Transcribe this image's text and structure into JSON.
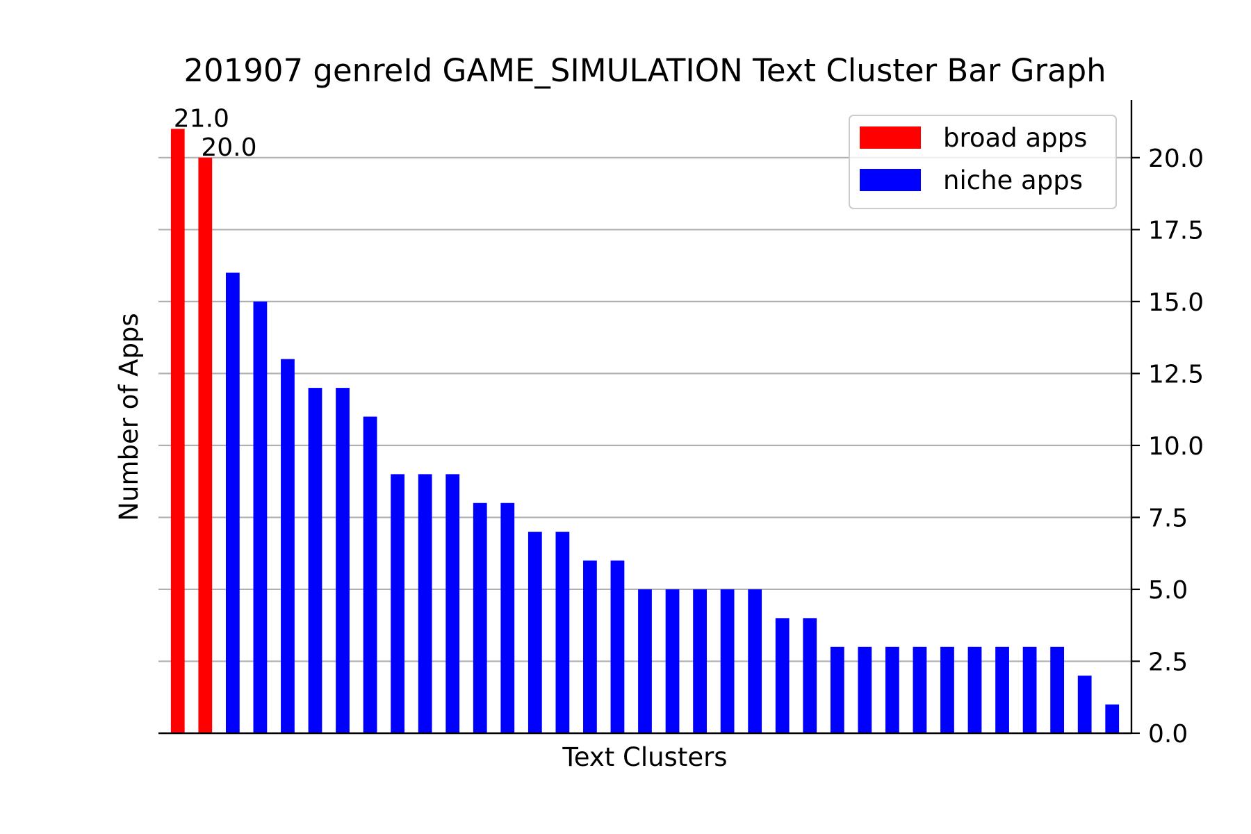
{
  "chart_data": {
    "type": "bar",
    "title": "201907 genreId GAME_SIMULATION Text Cluster Bar Graph",
    "xlabel": "Text Clusters",
    "ylabel": "Number of Apps",
    "ylim": [
      0,
      22
    ],
    "yticks": [
      0.0,
      2.5,
      5.0,
      7.5,
      10.0,
      12.5,
      15.0,
      17.5,
      20.0
    ],
    "ytick_labels": [
      "0.0",
      "2.5",
      "5.0",
      "7.5",
      "10.0",
      "12.5",
      "15.0",
      "17.5",
      "20.0"
    ],
    "y_axis_side": "right",
    "grid": "horizontal",
    "legend_position": "top-right",
    "series": [
      {
        "name": "broad apps",
        "color": "#ff0000",
        "values": [
          21,
          20
        ]
      },
      {
        "name": "niche apps",
        "color": "#0000ff",
        "values": [
          16,
          15,
          13,
          12,
          12,
          11,
          9,
          9,
          9,
          8,
          8,
          7,
          7,
          6,
          6,
          5,
          5,
          5,
          5,
          5,
          4,
          4,
          3,
          3,
          3,
          3,
          3,
          3,
          3,
          3,
          3,
          2,
          1
        ]
      }
    ],
    "data_labels": [
      {
        "series": 0,
        "index": 0,
        "text": "21.0"
      },
      {
        "series": 0,
        "index": 1,
        "text": "20.0"
      }
    ]
  }
}
